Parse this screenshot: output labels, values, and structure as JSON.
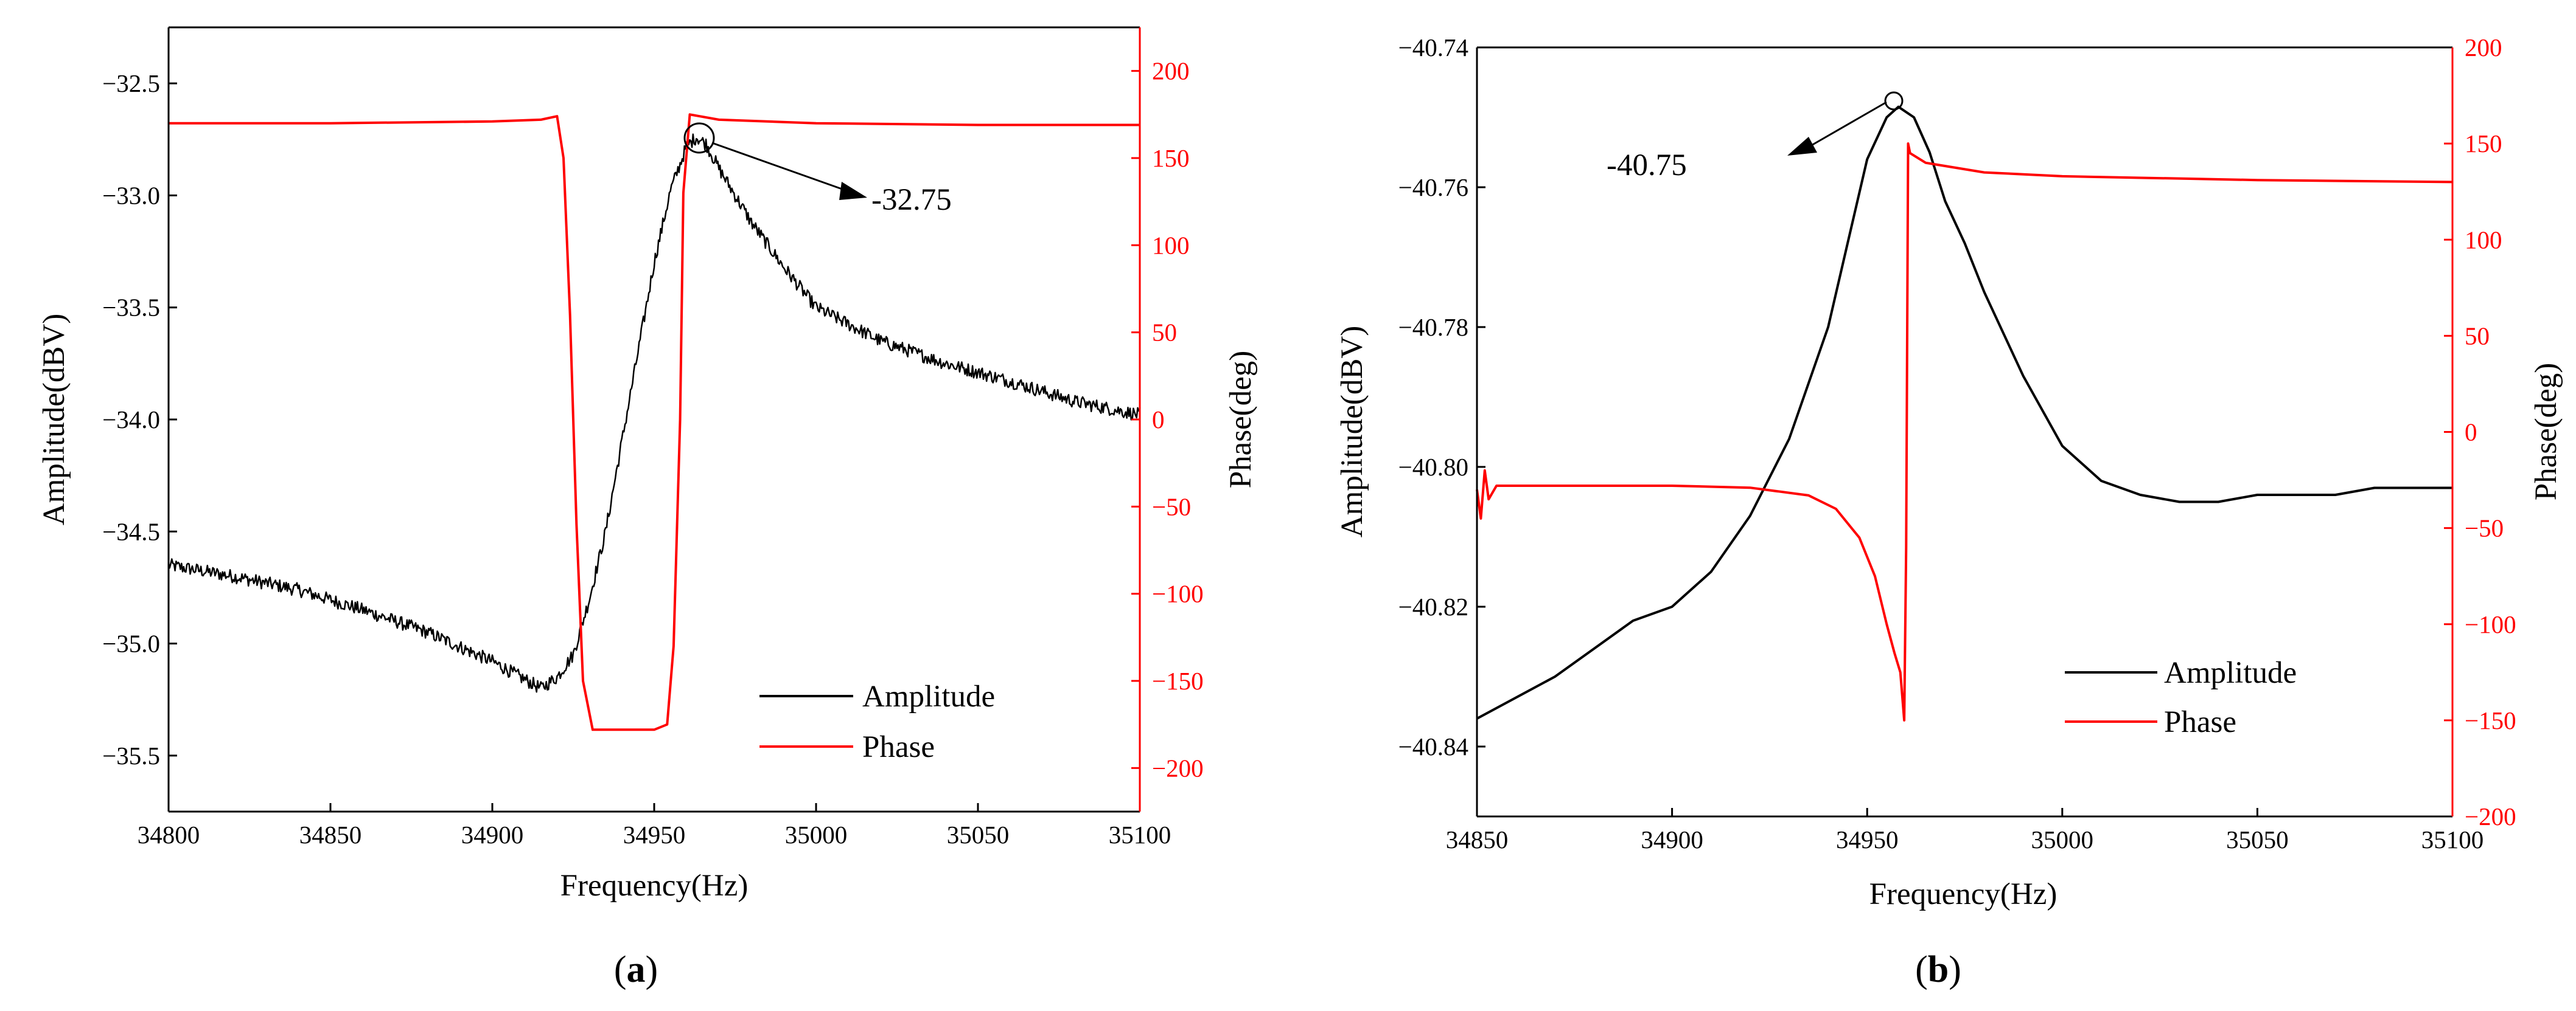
{
  "colors": {
    "amplitude": "#000000",
    "phase": "#ff0000"
  },
  "chart_data": [
    {
      "id": "a",
      "type": "line",
      "caption": {
        "open": "(",
        "letter": "a",
        "close": ")"
      },
      "xlabel": "Frequency(Hz)",
      "ylabel": "Amplitude(dBV)",
      "y2label": "Phase(deg)",
      "xlim": [
        34800,
        35100
      ],
      "ylim": [
        -35.75,
        -32.25
      ],
      "y2lim": [
        -225,
        225
      ],
      "xticks": [
        34800,
        34850,
        34900,
        34950,
        35000,
        35050,
        35100
      ],
      "yticks": [
        -35.5,
        -35.0,
        -34.5,
        -34.0,
        -33.5,
        -33.0,
        -32.5
      ],
      "y2ticks": [
        -200,
        -150,
        -100,
        -50,
        0,
        50,
        100,
        150,
        200
      ],
      "xtick_labels": [
        "34800",
        "34850",
        "34900",
        "34950",
        "35000",
        "35050",
        "35100"
      ],
      "ytick_labels": [
        "−35.5",
        "−35.0",
        "−34.5",
        "−34.0",
        "−33.5",
        "−33.0",
        "−32.5"
      ],
      "y2tick_labels": [
        "−200",
        "−150",
        "−100",
        "−50",
        "0",
        "50",
        "100",
        "150",
        "200"
      ],
      "legend": [
        "Amplitude",
        "Phase"
      ],
      "legend_position": "bottom-right",
      "annotation": {
        "label": "-32.75",
        "x": 34964,
        "y": -32.75
      },
      "series": [
        {
          "name": "Amplitude",
          "axis": "left",
          "noise": 0.03,
          "x": [
            34800,
            34820,
            34840,
            34860,
            34880,
            34900,
            34910,
            34915,
            34920,
            34925,
            34930,
            34935,
            34940,
            34945,
            34950,
            34955,
            34960,
            34963,
            34966,
            34970,
            34975,
            34980,
            34990,
            35000,
            35020,
            35040,
            35060,
            35080,
            35100
          ],
          "y": [
            -34.65,
            -34.7,
            -34.76,
            -34.85,
            -34.95,
            -35.08,
            -35.16,
            -35.2,
            -35.15,
            -35.05,
            -34.8,
            -34.5,
            -34.1,
            -33.7,
            -33.3,
            -32.98,
            -32.78,
            -32.74,
            -32.77,
            -32.88,
            -33.0,
            -33.12,
            -33.32,
            -33.5,
            -33.65,
            -33.75,
            -33.83,
            -33.92,
            -33.98
          ]
        },
        {
          "name": "Phase",
          "axis": "right",
          "noise": 0,
          "x": [
            34800,
            34850,
            34900,
            34915,
            34920,
            34922,
            34924,
            34926,
            34928,
            34931,
            34940,
            34950,
            34954,
            34956,
            34958,
            34959,
            34961,
            34970,
            35000,
            35050,
            35100
          ],
          "y": [
            170,
            170,
            171,
            172,
            174,
            150,
            60,
            -60,
            -150,
            -178,
            -178,
            -178,
            -175,
            -130,
            0,
            130,
            175,
            172,
            170,
            169,
            169
          ]
        }
      ]
    },
    {
      "id": "b",
      "type": "line",
      "caption": {
        "open": "(",
        "letter": "b",
        "close": ")"
      },
      "xlabel": "Frequency(Hz)",
      "ylabel": "Amplitude(dBV)",
      "y2label": "Phase(deg)",
      "xlim": [
        34850,
        35100
      ],
      "ylim": [
        -40.85,
        -40.74
      ],
      "y2lim": [
        -200,
        200
      ],
      "xticks": [
        34850,
        34900,
        34950,
        35000,
        35050,
        35100
      ],
      "yticks": [
        -40.84,
        -40.82,
        -40.8,
        -40.78,
        -40.76,
        -40.74
      ],
      "y2ticks": [
        -200,
        -150,
        -100,
        -50,
        0,
        50,
        100,
        150,
        200
      ],
      "xtick_labels": [
        "34850",
        "34900",
        "34950",
        "35000",
        "35050",
        "35100"
      ],
      "ytick_labels": [
        "−40.84",
        "−40.82",
        "−40.80",
        "−40.78",
        "−40.76",
        "−40.74"
      ],
      "y2tick_labels": [
        "−200",
        "−150",
        "−100",
        "−50",
        "0",
        "50",
        "100",
        "150",
        "200"
      ],
      "legend": [
        "Amplitude",
        "Phase"
      ],
      "legend_position": "bottom-right",
      "annotation": {
        "label": "-40.75",
        "x": 34958,
        "y": -40.7485
      },
      "series": [
        {
          "name": "Amplitude",
          "axis": "left",
          "noise": 0,
          "x": [
            34850,
            34860,
            34870,
            34880,
            34890,
            34900,
            34910,
            34920,
            34930,
            34940,
            34945,
            34950,
            34955,
            34958,
            34962,
            34966,
            34970,
            34975,
            34980,
            34990,
            35000,
            35010,
            35020,
            35030,
            35040,
            35050,
            35060,
            35070,
            35080,
            35090,
            35100
          ],
          "y": [
            -40.836,
            -40.833,
            -40.83,
            -40.826,
            -40.822,
            -40.82,
            -40.815,
            -40.807,
            -40.796,
            -40.78,
            -40.768,
            -40.756,
            -40.75,
            -40.7485,
            -40.75,
            -40.755,
            -40.762,
            -40.768,
            -40.775,
            -40.787,
            -40.797,
            -40.802,
            -40.804,
            -40.805,
            -40.805,
            -40.804,
            -40.804,
            -40.804,
            -40.803,
            -40.803,
            -40.803
          ]
        },
        {
          "name": "Phase",
          "axis": "right",
          "noise": 0,
          "x": [
            34850,
            34851,
            34852,
            34853,
            34855,
            34870,
            34900,
            34920,
            34935,
            34942,
            34948,
            34952,
            34955,
            34957,
            34958.5,
            34959.5,
            34960,
            34960.5,
            34961,
            34965,
            34980,
            35000,
            35050,
            35100
          ],
          "y": [
            -30,
            -45,
            -20,
            -35,
            -28,
            -28,
            -28,
            -29,
            -33,
            -40,
            -55,
            -75,
            -100,
            -115,
            -125,
            -150,
            -60,
            150,
            145,
            140,
            135,
            133,
            131,
            130
          ]
        }
      ]
    }
  ]
}
